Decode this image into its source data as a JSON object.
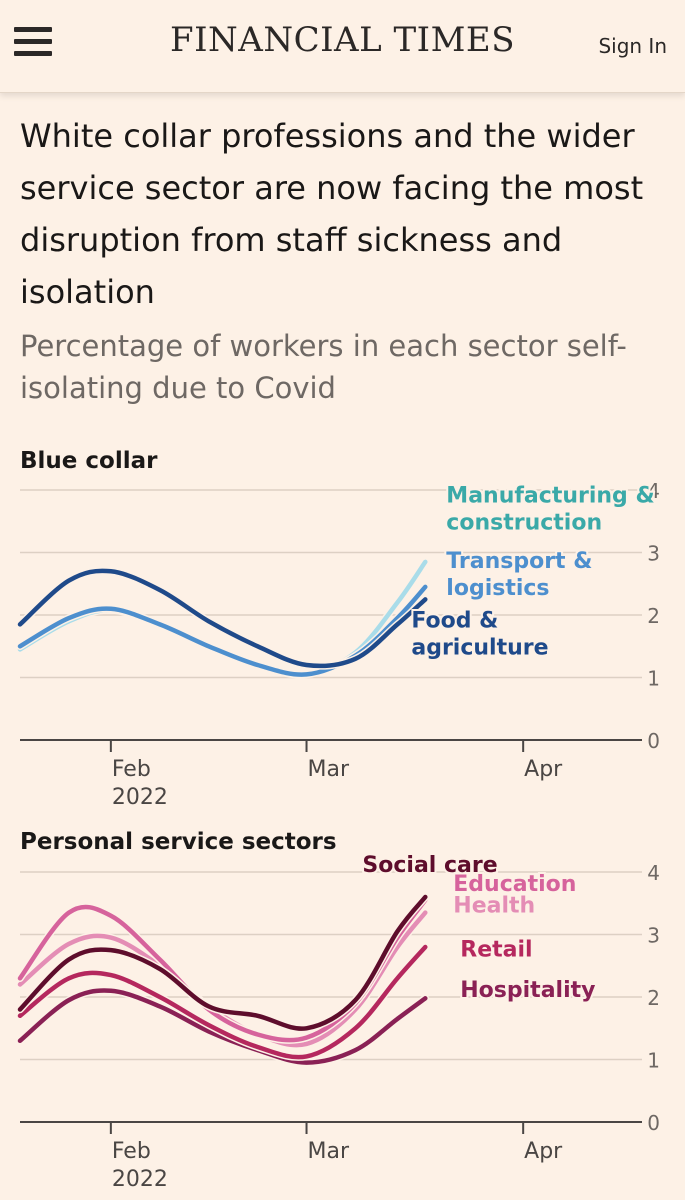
{
  "header": {
    "menu_icon": "hamburger-menu-icon",
    "logo": "FINANCIAL TIMES",
    "sign_in": "Sign In"
  },
  "article": {
    "title": "White collar professions and the wider service sector are now facing the most disruption from staff sickness and isolation",
    "subtitle": "Percentage of workers in each sector self-isolating due to Covid"
  },
  "chart_data": [
    {
      "type": "line",
      "title": "Blue collar",
      "x_unit": "date",
      "xlim": [
        "2022-01-19",
        "2022-04-16"
      ],
      "ylim": [
        0,
        4
      ],
      "y_ticks": [
        "0",
        "1",
        "2",
        "3",
        "4"
      ],
      "x_ticks": [
        {
          "label": "Feb",
          "sub": "2022",
          "date": "2022-02-01"
        },
        {
          "label": "Mar",
          "sub": "",
          "date": "2022-03-01"
        },
        {
          "label": "Apr",
          "sub": "",
          "date": "2022-04-01"
        }
      ],
      "grid": true,
      "series": [
        {
          "name": "Manufacturing & construction",
          "label_lines": [
            "Manufacturing &",
            "construction"
          ],
          "color": "#a9dce9",
          "label_color": "#3aa9a8",
          "points": [
            [
              "2022-01-19",
              1.45
            ],
            [
              "2022-01-26",
              1.9
            ],
            [
              "2022-02-01",
              2.08
            ],
            [
              "2022-02-08",
              1.85
            ],
            [
              "2022-02-15",
              1.5
            ],
            [
              "2022-02-22",
              1.2
            ],
            [
              "2022-03-01",
              1.05
            ],
            [
              "2022-03-08",
              1.4
            ],
            [
              "2022-03-14",
              2.2
            ],
            [
              "2022-03-18",
              2.85
            ]
          ]
        },
        {
          "name": "Transport & logistics",
          "label_lines": [
            "Transport &",
            "logistics"
          ],
          "color": "#4d8fce",
          "label_color": "#4d8fce",
          "points": [
            [
              "2022-01-19",
              1.5
            ],
            [
              "2022-01-26",
              1.95
            ],
            [
              "2022-02-01",
              2.1
            ],
            [
              "2022-02-08",
              1.85
            ],
            [
              "2022-02-15",
              1.5
            ],
            [
              "2022-02-22",
              1.2
            ],
            [
              "2022-03-01",
              1.05
            ],
            [
              "2022-03-08",
              1.35
            ],
            [
              "2022-03-14",
              1.95
            ],
            [
              "2022-03-18",
              2.45
            ]
          ]
        },
        {
          "name": "Food & agriculture",
          "label_lines": [
            "Food &",
            "agriculture"
          ],
          "color": "#1f4a8a",
          "label_color": "#1f4a8a",
          "points": [
            [
              "2022-01-19",
              1.85
            ],
            [
              "2022-01-26",
              2.55
            ],
            [
              "2022-02-01",
              2.7
            ],
            [
              "2022-02-08",
              2.4
            ],
            [
              "2022-02-15",
              1.9
            ],
            [
              "2022-02-22",
              1.5
            ],
            [
              "2022-03-01",
              1.2
            ],
            [
              "2022-03-08",
              1.3
            ],
            [
              "2022-03-14",
              1.85
            ],
            [
              "2022-03-18",
              2.25
            ]
          ]
        }
      ]
    },
    {
      "type": "line",
      "title": "Personal service sectors",
      "x_unit": "date",
      "xlim": [
        "2022-01-19",
        "2022-04-16"
      ],
      "ylim": [
        0,
        4
      ],
      "y_ticks": [
        "0",
        "1",
        "2",
        "3",
        "4"
      ],
      "x_ticks": [
        {
          "label": "Feb",
          "sub": "2022",
          "date": "2022-02-01"
        },
        {
          "label": "Mar",
          "sub": "",
          "date": "2022-03-01"
        },
        {
          "label": "Apr",
          "sub": "",
          "date": "2022-04-01"
        }
      ],
      "grid": true,
      "series": [
        {
          "name": "Hospitality",
          "color": "#8a2155",
          "label_color": "#8a2155",
          "points": [
            [
              "2022-01-19",
              1.3
            ],
            [
              "2022-01-26",
              1.95
            ],
            [
              "2022-02-01",
              2.1
            ],
            [
              "2022-02-08",
              1.85
            ],
            [
              "2022-02-15",
              1.45
            ],
            [
              "2022-02-22",
              1.15
            ],
            [
              "2022-03-01",
              0.95
            ],
            [
              "2022-03-08",
              1.15
            ],
            [
              "2022-03-14",
              1.65
            ],
            [
              "2022-03-18",
              1.98
            ]
          ]
        },
        {
          "name": "Retail",
          "color": "#b5285e",
          "label_color": "#b5285e",
          "points": [
            [
              "2022-01-19",
              1.7
            ],
            [
              "2022-01-26",
              2.3
            ],
            [
              "2022-02-01",
              2.35
            ],
            [
              "2022-02-08",
              2.0
            ],
            [
              "2022-02-15",
              1.55
            ],
            [
              "2022-02-22",
              1.2
            ],
            [
              "2022-03-01",
              1.05
            ],
            [
              "2022-03-08",
              1.5
            ],
            [
              "2022-03-14",
              2.3
            ],
            [
              "2022-03-18",
              2.8
            ]
          ]
        },
        {
          "name": "Health",
          "color": "#e48db5",
          "label_color": "#e48db5",
          "points": [
            [
              "2022-01-19",
              2.2
            ],
            [
              "2022-01-26",
              2.85
            ],
            [
              "2022-02-01",
              2.95
            ],
            [
              "2022-02-08",
              2.5
            ],
            [
              "2022-02-15",
              1.85
            ],
            [
              "2022-02-22",
              1.4
            ],
            [
              "2022-03-01",
              1.25
            ],
            [
              "2022-03-08",
              1.8
            ],
            [
              "2022-03-14",
              2.8
            ],
            [
              "2022-03-18",
              3.35
            ]
          ]
        },
        {
          "name": "Education",
          "color": "#d6639c",
          "label_color": "#d6639c",
          "points": [
            [
              "2022-01-19",
              2.3
            ],
            [
              "2022-01-26",
              3.35
            ],
            [
              "2022-02-01",
              3.3
            ],
            [
              "2022-02-08",
              2.6
            ],
            [
              "2022-02-15",
              1.8
            ],
            [
              "2022-02-22",
              1.4
            ],
            [
              "2022-03-01",
              1.35
            ],
            [
              "2022-03-08",
              1.9
            ],
            [
              "2022-03-14",
              2.95
            ],
            [
              "2022-03-18",
              3.55
            ]
          ]
        },
        {
          "name": "Social care",
          "color": "#5e0d2c",
          "label_color": "#5e0d2c",
          "points": [
            [
              "2022-01-19",
              1.8
            ],
            [
              "2022-01-26",
              2.6
            ],
            [
              "2022-02-01",
              2.75
            ],
            [
              "2022-02-08",
              2.45
            ],
            [
              "2022-02-15",
              1.85
            ],
            [
              "2022-02-22",
              1.7
            ],
            [
              "2022-03-01",
              1.5
            ],
            [
              "2022-03-08",
              1.95
            ],
            [
              "2022-03-14",
              3.05
            ],
            [
              "2022-03-18",
              3.6
            ]
          ]
        }
      ]
    }
  ]
}
